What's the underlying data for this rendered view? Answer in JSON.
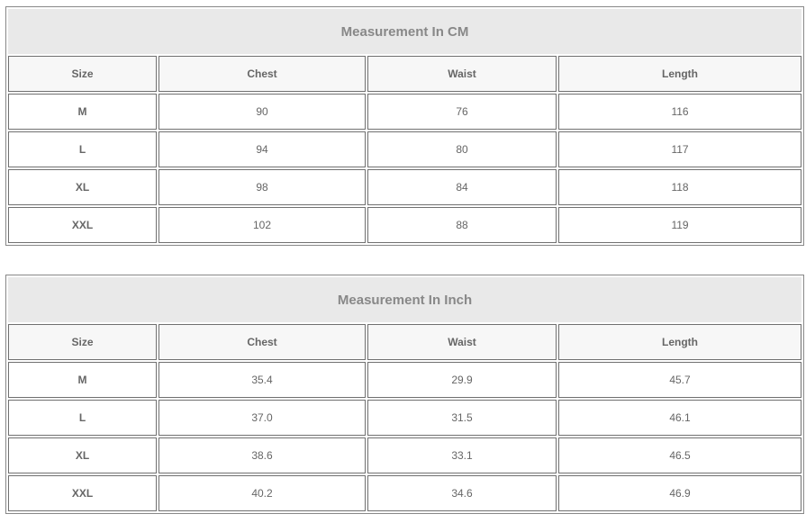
{
  "tables": [
    {
      "title": "Measurement In CM",
      "headers": [
        "Size",
        "Chest",
        "Waist",
        "Length"
      ],
      "rows": [
        [
          "M",
          "90",
          "76",
          "116"
        ],
        [
          "L",
          "94",
          "80",
          "117"
        ],
        [
          "XL",
          "98",
          "84",
          "118"
        ],
        [
          "XXL",
          "102",
          "88",
          "119"
        ]
      ]
    },
    {
      "title": "Measurement In Inch",
      "headers": [
        "Size",
        "Chest",
        "Waist",
        "Length"
      ],
      "rows": [
        [
          "M",
          "35.4",
          "29.9",
          "45.7"
        ],
        [
          "L",
          "37.0",
          "31.5",
          "46.1"
        ],
        [
          "XL",
          "38.6",
          "33.1",
          "46.5"
        ],
        [
          "XXL",
          "40.2",
          "34.6",
          "46.9"
        ]
      ]
    }
  ]
}
